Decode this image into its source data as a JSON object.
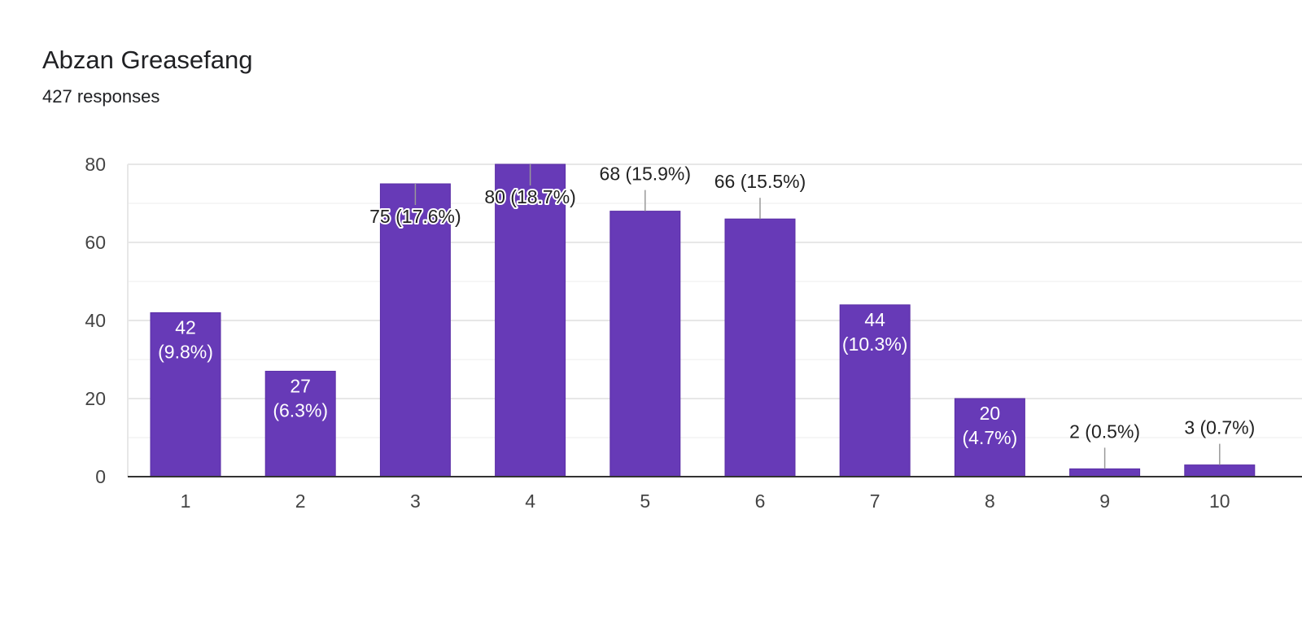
{
  "title": "Abzan Greasefang",
  "subtitle": "427 responses",
  "colors": {
    "bar": "#673ab7",
    "grid_major": "#e7e7e7",
    "grid_minor": "#f3f3f3",
    "axis": "#333333",
    "tick_text": "#444444",
    "label_dark": "#222222",
    "label_light": "#ffffff",
    "leader": "#999999"
  },
  "chart_data": {
    "type": "bar",
    "title": "Abzan Greasefang",
    "subtitle": "427 responses",
    "categories": [
      "1",
      "2",
      "3",
      "4",
      "5",
      "6",
      "7",
      "8",
      "9",
      "10"
    ],
    "values": [
      42,
      27,
      75,
      80,
      68,
      66,
      44,
      20,
      2,
      3
    ],
    "data_labels": [
      "42 (9.8%)",
      "27 (6.3%)",
      "75 (17.6%)",
      "80 (18.7%)",
      "68 (15.9%)",
      "66 (15.5%)",
      "44 (10.3%)",
      "20 (4.7%)",
      "2 (0.5%)",
      "3 (0.7%)"
    ],
    "ylim": [
      0,
      80
    ],
    "yticks": [
      "0",
      "20",
      "40",
      "60",
      "80"
    ],
    "grid": true,
    "legend": "none"
  }
}
